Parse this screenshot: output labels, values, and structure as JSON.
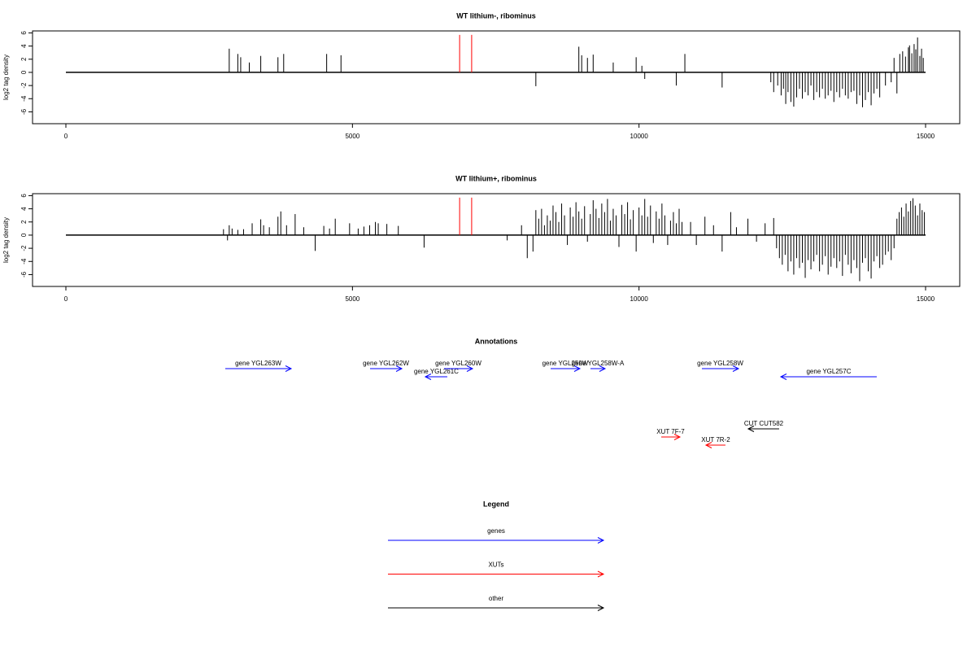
{
  "chart_data": [
    {
      "type": "spike",
      "title": "WT lithium-, ribominus",
      "ylabel": "log2 tag density",
      "xlim": [
        -582,
        15596
      ],
      "xticks": [
        0,
        5000,
        10000,
        15000
      ],
      "ylim": [
        -7.8,
        6.3
      ],
      "yticks": [
        -6,
        -4,
        -2,
        0,
        2,
        4,
        6
      ],
      "series": [
        {
          "color": "#000000",
          "x": [
            2850,
            3000,
            3050,
            3200,
            3400,
            3700,
            3800,
            4550,
            4800,
            8200,
            8950,
            9000,
            9100,
            9200,
            9550,
            9950,
            10050,
            10100,
            10650,
            10800,
            11450,
            12300,
            12350,
            12420,
            12480,
            12520,
            12560,
            12600,
            12650,
            12700,
            12750,
            12800,
            12850,
            12900,
            12950,
            13000,
            13050,
            13100,
            13150,
            13200,
            13250,
            13300,
            13350,
            13400,
            13450,
            13500,
            13550,
            13600,
            13650,
            13700,
            13750,
            13800,
            13850,
            13900,
            13950,
            14000,
            14050,
            14100,
            14150,
            14200,
            14300,
            14400,
            14450,
            14500,
            14550,
            14600,
            14650,
            14700,
            14720,
            14760,
            14800,
            14830,
            14860,
            14900,
            14930,
            14960
          ],
          "values": [
            3.6,
            2.8,
            2.3,
            1.5,
            2.5,
            2.3,
            2.8,
            2.8,
            2.6,
            -2.1,
            3.9,
            2.6,
            2.2,
            2.7,
            1.5,
            2.3,
            1,
            -1,
            -2,
            2.8,
            -2.3,
            -1.5,
            -3,
            -2,
            -3.5,
            -2.5,
            -4.8,
            -3,
            -4.5,
            -5.2,
            -3.8,
            -2.5,
            -4,
            -3,
            -3.5,
            -2,
            -4.2,
            -3,
            -3.8,
            -2.5,
            -4,
            -3.5,
            -2.8,
            -4.5,
            -3,
            -3.8,
            -2.5,
            -3.5,
            -4,
            -3,
            -2.8,
            -4.8,
            -3.5,
            -5.3,
            -4.2,
            -3,
            -5,
            -3.2,
            -2.5,
            -3.8,
            -2,
            -1.5,
            2.2,
            -3.2,
            2.8,
            3.2,
            2.4,
            3.8,
            4.1,
            2.9,
            4.3,
            3.5,
            5.3,
            2.5,
            3.6,
            2.2
          ]
        },
        {
          "color": "#ff0000",
          "x": [
            6870,
            7080
          ],
          "values": [
            5.7,
            5.7
          ]
        }
      ]
    },
    {
      "type": "spike",
      "title": "WT lithium+, ribominus",
      "ylabel": "log2 tag density",
      "xlim": [
        -582,
        15596
      ],
      "xticks": [
        0,
        5000,
        10000,
        15000
      ],
      "ylim": [
        -7.8,
        6.3
      ],
      "yticks": [
        -6,
        -4,
        -2,
        0,
        2,
        4,
        6
      ],
      "series": [
        {
          "color": "#000000",
          "x": [
            2750,
            2820,
            2850,
            2900,
            3000,
            3100,
            3250,
            3400,
            3450,
            3550,
            3700,
            3750,
            3850,
            4000,
            4150,
            4350,
            4500,
            4600,
            4700,
            4950,
            5100,
            5200,
            5300,
            5400,
            5450,
            5600,
            5800,
            6250,
            7700,
            7950,
            8050,
            8150,
            8200,
            8250,
            8300,
            8350,
            8400,
            8450,
            8500,
            8550,
            8600,
            8650,
            8700,
            8750,
            8800,
            8850,
            8900,
            8950,
            9000,
            9050,
            9100,
            9150,
            9200,
            9250,
            9300,
            9350,
            9400,
            9450,
            9500,
            9550,
            9600,
            9650,
            9700,
            9750,
            9800,
            9850,
            9900,
            9950,
            10000,
            10050,
            10100,
            10150,
            10200,
            10250,
            10300,
            10350,
            10400,
            10450,
            10500,
            10550,
            10600,
            10650,
            10700,
            10750,
            10900,
            11000,
            11150,
            11300,
            11450,
            11600,
            11700,
            11900,
            12050,
            12200,
            12350,
            12400,
            12450,
            12500,
            12550,
            12600,
            12650,
            12700,
            12750,
            12800,
            12850,
            12900,
            12950,
            13000,
            13050,
            13100,
            13150,
            13200,
            13250,
            13300,
            13350,
            13400,
            13450,
            13500,
            13550,
            13600,
            13650,
            13700,
            13750,
            13800,
            13850,
            13900,
            13950,
            14000,
            14050,
            14100,
            14150,
            14200,
            14250,
            14300,
            14350,
            14400,
            14450,
            14500,
            14540,
            14580,
            14620,
            14660,
            14700,
            14740,
            14780,
            14820,
            14860,
            14900,
            14940,
            14980
          ],
          "values": [
            0.9,
            -0.8,
            1.5,
            1,
            0.8,
            0.9,
            1.8,
            2.4,
            1.5,
            1.2,
            2.8,
            3.6,
            1.5,
            3.2,
            1.2,
            -2.4,
            1.4,
            1,
            2.5,
            1.8,
            1,
            1.3,
            1.5,
            2,
            1.8,
            1.7,
            1.4,
            -1.9,
            -0.8,
            1.5,
            -3.5,
            -2.5,
            3.8,
            2.5,
            4,
            1.5,
            3,
            2.2,
            4.5,
            3.5,
            2,
            4.8,
            3,
            -1.5,
            4.2,
            2.8,
            5,
            3.6,
            2.5,
            4.4,
            -1,
            3.2,
            5.3,
            4,
            2.6,
            4.8,
            3.5,
            5.5,
            2.2,
            4,
            3,
            -1.8,
            4.6,
            3.2,
            5,
            2.4,
            3.8,
            -2.5,
            4.2,
            3,
            5.5,
            2.8,
            4.5,
            -1.2,
            3.6,
            2.5,
            4.8,
            3,
            -1.5,
            2.2,
            3.5,
            1.8,
            4,
            2,
            2,
            -1.5,
            2.8,
            1.5,
            -2.5,
            3.5,
            1.2,
            2.5,
            -1,
            1.8,
            2.6,
            -2,
            -3.5,
            -4.5,
            -3,
            -5.5,
            -4,
            -6,
            -3.5,
            -5,
            -4.2,
            -6.5,
            -3.8,
            -5.2,
            -4,
            -3,
            -5.5,
            -4.5,
            -3.2,
            -6,
            -4.8,
            -3.5,
            -5,
            -4,
            -6.2,
            -3,
            -4.5,
            -5.8,
            -3.8,
            -5,
            -7,
            -4.2,
            -3.5,
            -5.5,
            -6.6,
            -4,
            -3.2,
            -5,
            -4.5,
            -3,
            -2.5,
            -3.8,
            -2,
            2.5,
            3.5,
            4.2,
            2.8,
            4.8,
            3.6,
            5.2,
            5.6,
            4.5,
            3,
            4.8,
            3.8,
            3.5
          ]
        },
        {
          "color": "#ff0000",
          "x": [
            6870,
            7080
          ],
          "values": [
            5.7,
            5.7
          ]
        }
      ]
    }
  ],
  "annotations": {
    "title": "Annotations",
    "groups": [
      {
        "name": "genes",
        "color": "#0000ff",
        "features": [
          {
            "label": "gene YGL263W",
            "start": 2781,
            "end": 3931,
            "strand": "+"
          },
          {
            "label": "gene YGL262W",
            "start": 5307,
            "end": 5861,
            "strand": "+"
          },
          {
            "label": "gene YGL261C",
            "start": 6272,
            "end": 6655,
            "strand": "-"
          },
          {
            "label": "gene YGL260W",
            "start": 6599,
            "end": 7095,
            "strand": "+"
          },
          {
            "label": "gene YGL259W",
            "start": 8458,
            "end": 8968,
            "strand": "+"
          },
          {
            "label": "gene YGL258W-A",
            "start": 9153,
            "end": 9408,
            "strand": "+"
          },
          {
            "label": "gene YGL258W",
            "start": 11097,
            "end": 11736,
            "strand": "+"
          },
          {
            "label": "gene YGL257C",
            "start": 12474,
            "end": 14148,
            "strand": "-"
          }
        ]
      },
      {
        "name": "XUTs",
        "color": "#ff0000",
        "features": [
          {
            "label": "XUT 7F-7",
            "start": 10388,
            "end": 10714,
            "strand": "+"
          },
          {
            "label": "XUT 7R-2",
            "start": 11168,
            "end": 11508,
            "strand": "-"
          }
        ]
      },
      {
        "name": "other",
        "color": "#000000",
        "features": [
          {
            "label": "CUT CUT582",
            "start": 11906,
            "end": 12445,
            "strand": "-"
          }
        ]
      }
    ]
  },
  "legend": {
    "title": "Legend"
  }
}
